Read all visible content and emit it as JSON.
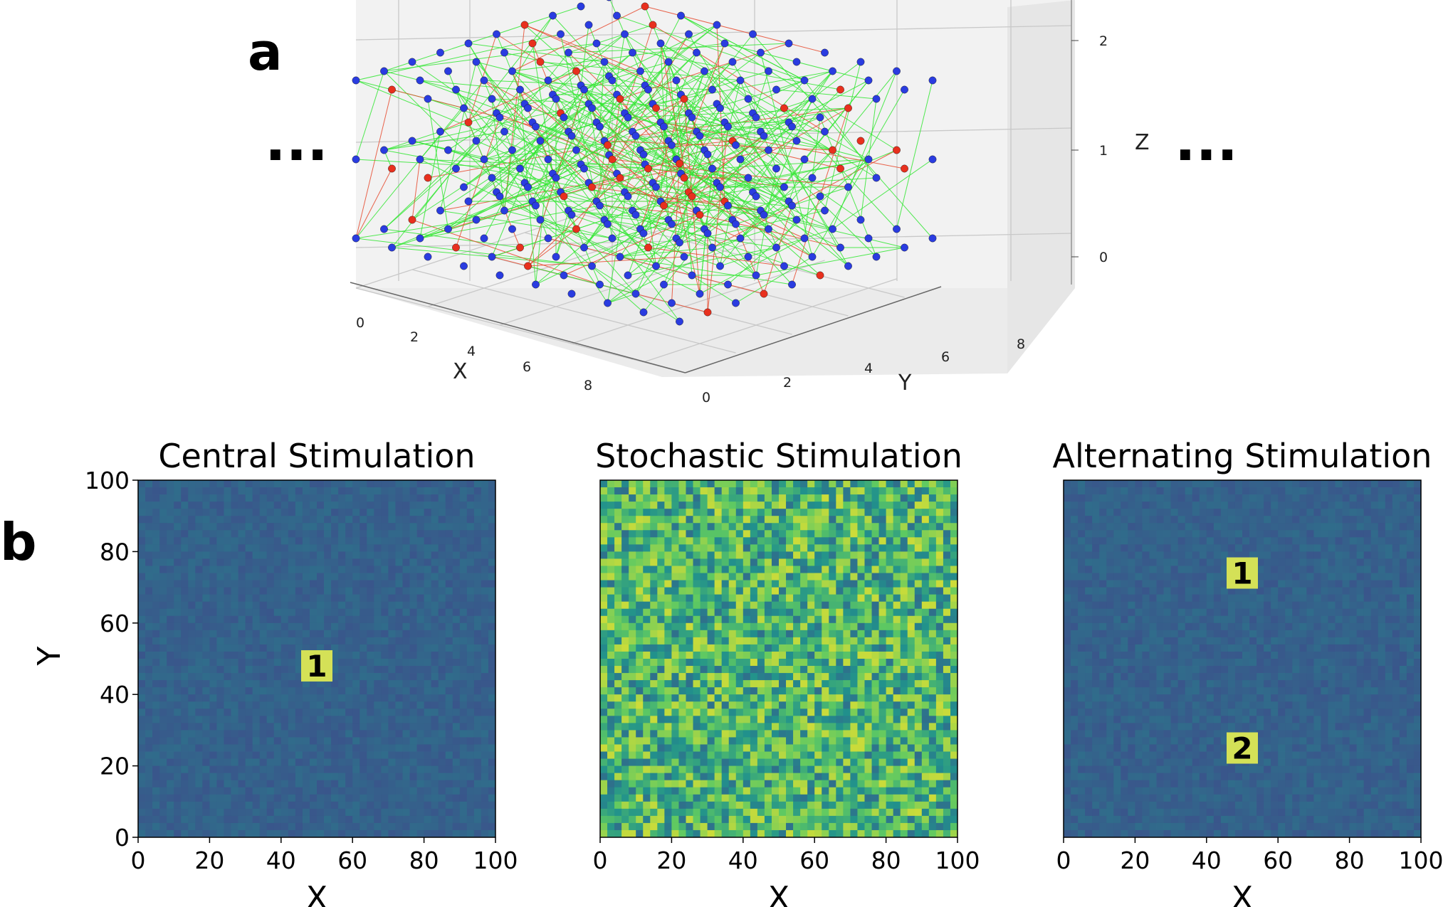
{
  "panel_a": {
    "label": "a",
    "left_ellipsis": "...",
    "right_ellipsis": "...",
    "axes": {
      "x_label": "X",
      "y_label": "Y",
      "z_label": "Z"
    },
    "x_ticks": [
      "0",
      "2",
      "4",
      "6",
      "8"
    ],
    "y_ticks": [
      "0",
      "2",
      "4",
      "6",
      "8"
    ],
    "z_ticks": [
      "0",
      "1",
      "2"
    ],
    "colors": {
      "excitatory_node": "#2a3ce0",
      "inhibitory_node": "#e8301e",
      "excitatory_edge": "#33e633",
      "inhibitory_edge": "#e64a2e"
    }
  },
  "panel_b": {
    "label": "b",
    "y_label": "Y",
    "colormap": [
      "#3b528b",
      "#21918c",
      "#5ec962",
      "#cddc39"
    ],
    "heatmaps": [
      {
        "title": "Central Stimulation",
        "x_label": "X",
        "pattern": "low",
        "markers": [
          {
            "label": "1",
            "x": 50,
            "y": 48
          }
        ]
      },
      {
        "title": "Stochastic Stimulation",
        "x_label": "X",
        "pattern": "noise",
        "markers": []
      },
      {
        "title": "Alternating Stimulation",
        "x_label": "X",
        "pattern": "low",
        "markers": [
          {
            "label": "1",
            "x": 50,
            "y": 74
          },
          {
            "label": "2",
            "x": 50,
            "y": 25
          }
        ]
      }
    ]
  },
  "chart_data": [
    {
      "type": "heatmap",
      "title": "Central Stimulation",
      "xlabel": "X",
      "ylabel": "Y",
      "xlim": [
        0,
        100
      ],
      "ylim": [
        0,
        100
      ],
      "x_ticks": [
        "0",
        "20",
        "40",
        "60",
        "80",
        "100"
      ],
      "y_ticks": [
        "0",
        "20",
        "40",
        "60",
        "80",
        "100"
      ],
      "annotations": [
        {
          "text": "1",
          "x": 50,
          "y": 48
        }
      ]
    },
    {
      "type": "heatmap",
      "title": "Stochastic Stimulation",
      "xlabel": "X",
      "xlim": [
        0,
        100
      ],
      "ylim": [
        0,
        100
      ],
      "x_ticks": [
        "0",
        "20",
        "40",
        "60",
        "80",
        "100"
      ]
    },
    {
      "type": "heatmap",
      "title": "Alternating Stimulation",
      "xlabel": "X",
      "xlim": [
        0,
        100
      ],
      "ylim": [
        0,
        100
      ],
      "x_ticks": [
        "0",
        "20",
        "40",
        "60",
        "80",
        "100"
      ],
      "annotations": [
        {
          "text": "1",
          "x": 50,
          "y": 74
        },
        {
          "text": "2",
          "x": 50,
          "y": 25
        }
      ]
    }
  ]
}
